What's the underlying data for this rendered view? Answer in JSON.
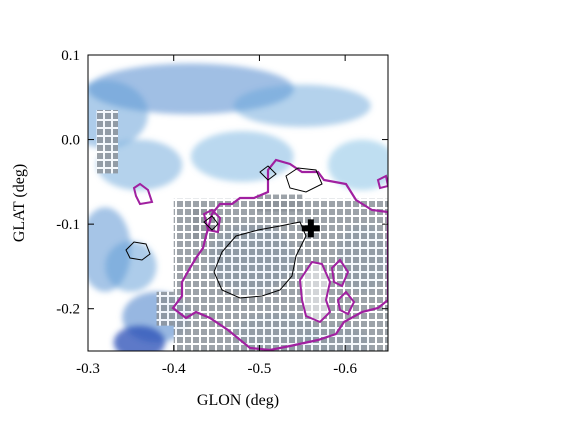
{
  "chart_data": {
    "type": "heatmap",
    "title": "",
    "xlabel": "GLON (deg)",
    "ylabel": "GLAT (deg)",
    "xlim": [
      -0.3,
      -0.65
    ],
    "ylim": [
      -0.25,
      0.1
    ],
    "x_reversed": true,
    "x_ticks": [
      -0.3,
      -0.4,
      -0.5,
      -0.6
    ],
    "x_tick_labels": [
      "-0.3",
      "-0.4",
      "-0.5",
      "-0.6"
    ],
    "y_ticks": [
      0.1,
      0.0,
      -0.1,
      -0.2
    ],
    "y_tick_labels": [
      "0.1",
      "0.0",
      "-0.1",
      "-0.2"
    ],
    "grid": false,
    "colormap": "white-to-blue",
    "background_emission": [
      {
        "glon": -0.42,
        "glat": 0.06,
        "intensity": 0.45,
        "sx": 0.12,
        "sy": 0.03
      },
      {
        "glon": -0.32,
        "glat": 0.03,
        "intensity": 0.35,
        "sx": 0.05,
        "sy": 0.04
      },
      {
        "glon": -0.55,
        "glat": 0.04,
        "intensity": 0.3,
        "sx": 0.08,
        "sy": 0.025
      },
      {
        "glon": -0.36,
        "glat": -0.03,
        "intensity": 0.3,
        "sx": 0.05,
        "sy": 0.03
      },
      {
        "glon": -0.48,
        "glat": -0.02,
        "intensity": 0.25,
        "sx": 0.06,
        "sy": 0.03
      },
      {
        "glon": -0.32,
        "glat": -0.13,
        "intensity": 0.4,
        "sx": 0.03,
        "sy": 0.05
      },
      {
        "glon": -0.35,
        "glat": -0.15,
        "intensity": 0.35,
        "sx": 0.03,
        "sy": 0.03
      },
      {
        "glon": -0.38,
        "glat": -0.21,
        "intensity": 0.5,
        "sx": 0.04,
        "sy": 0.03
      },
      {
        "glon": -0.36,
        "glat": -0.24,
        "intensity": 0.85,
        "sx": 0.03,
        "sy": 0.02
      },
      {
        "glon": -0.49,
        "glat": -0.14,
        "intensity": 0.45,
        "sx": 0.05,
        "sy": 0.04
      },
      {
        "glon": -0.52,
        "glat": -0.23,
        "intensity": 0.3,
        "sx": 0.05,
        "sy": 0.025
      },
      {
        "glon": -0.62,
        "glat": -0.14,
        "intensity": 0.3,
        "sx": 0.03,
        "sy": 0.04
      },
      {
        "glon": -0.59,
        "glat": -0.24,
        "intensity": 0.3,
        "sx": 0.04,
        "sy": 0.02
      },
      {
        "glon": -0.62,
        "glat": -0.03,
        "intensity": 0.2,
        "sx": 0.04,
        "sy": 0.03
      }
    ],
    "masked_region_color": "#8c939a",
    "masked_regions": [
      {
        "glon_min": -0.4,
        "glon_max": -0.65,
        "glat_min": -0.25,
        "glat_max": -0.07
      },
      {
        "glon_min": -0.495,
        "glon_max": -0.55,
        "glat_min": -0.085,
        "glat_max": -0.065
      },
      {
        "glon_min": -0.42,
        "glon_max": -0.45,
        "glat_min": -0.12,
        "glat_max": -0.08
      },
      {
        "glon_min": -0.38,
        "glon_max": -0.4,
        "glat_min": -0.22,
        "glat_max": -0.18
      },
      {
        "glon_min": -0.31,
        "glon_max": -0.335,
        "glat_min": -0.04,
        "glat_max": 0.035
      }
    ],
    "marker": {
      "glon": -0.56,
      "glat": -0.105,
      "symbol": "cross",
      "color": "#000000"
    }
  }
}
